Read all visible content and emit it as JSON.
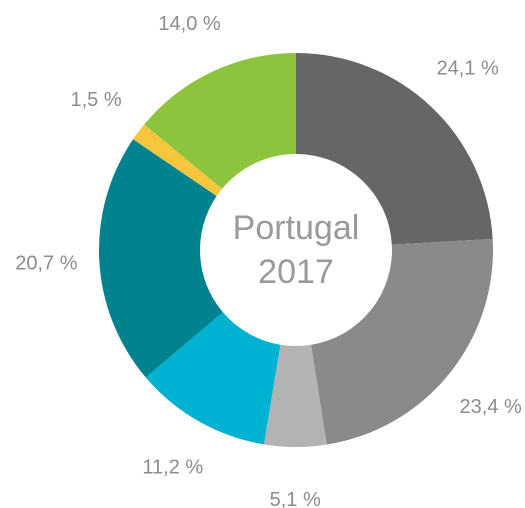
{
  "chart_data": {
    "type": "donut",
    "center_text": [
      "Portugal",
      "2017"
    ],
    "values": [
      24.1,
      23.4,
      5.1,
      11.2,
      20.7,
      1.5,
      14.0
    ],
    "value_labels": [
      "24,1 %",
      "23,4 %",
      "5,1 %",
      "11,2 %",
      "20,7 %",
      "1,5 %",
      "14,0 %"
    ],
    "colors": [
      "#666666",
      "#8a8a8a",
      "#b3b3b3",
      "#00b2d2",
      "#00838f",
      "#f7c53e",
      "#8cc43d"
    ]
  }
}
